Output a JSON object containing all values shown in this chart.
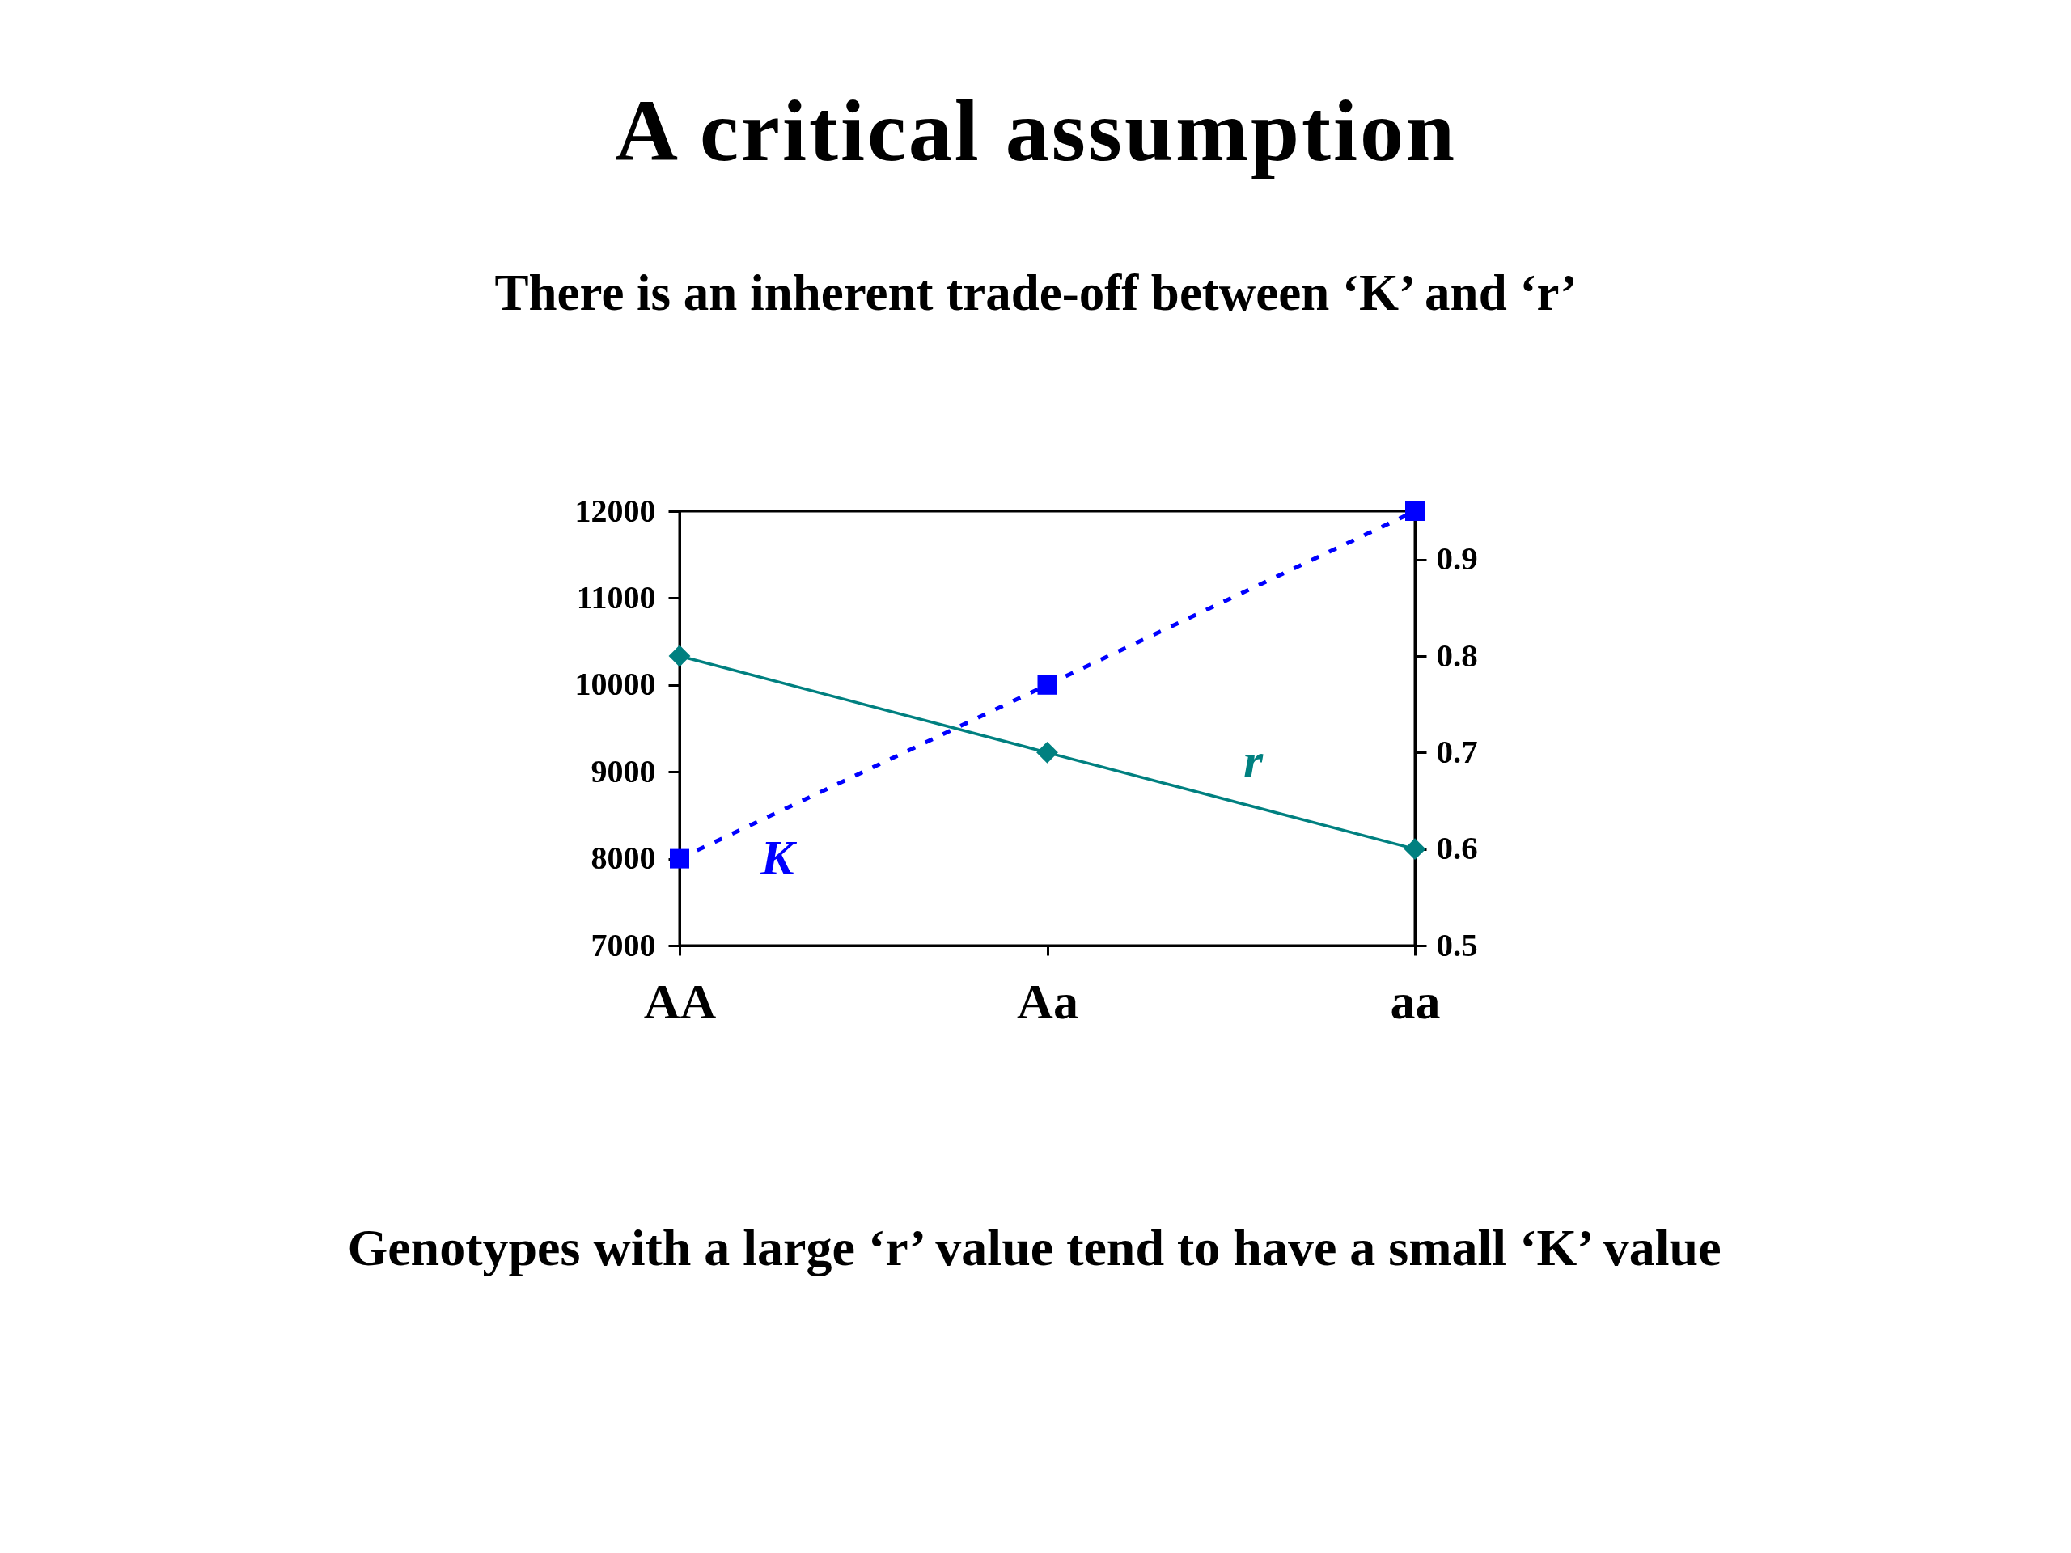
{
  "chart_data": {
    "type": "line",
    "title": "A critical assumption",
    "subtitle": "There is an inherent trade-off between ‘K’ and ‘r’",
    "annotations": [
      "Genotypes with a large ‘r’ value tend to have a small ‘K’ value"
    ],
    "categories": [
      "AA",
      "Aa",
      "aa"
    ],
    "series": [
      {
        "name": "K",
        "color": "#0000ff",
        "values": [
          8000,
          10000,
          12000
        ],
        "marker": "square",
        "line_style": "dotted"
      },
      {
        "name": "r",
        "color": "#008080",
        "values": [
          0.8,
          0.7,
          0.6
        ],
        "axis": "y2",
        "marker": "diamond",
        "line_style": "solid"
      }
    ],
    "ylim": [
      7000,
      12000
    ],
    "yticks": [
      7000,
      8000,
      9000,
      10000,
      11000,
      12000
    ],
    "y2lim": [
      0.5,
      0.95
    ],
    "y2ticks": [
      0.5,
      0.6,
      0.7,
      0.8,
      0.9
    ],
    "grid": false
  }
}
